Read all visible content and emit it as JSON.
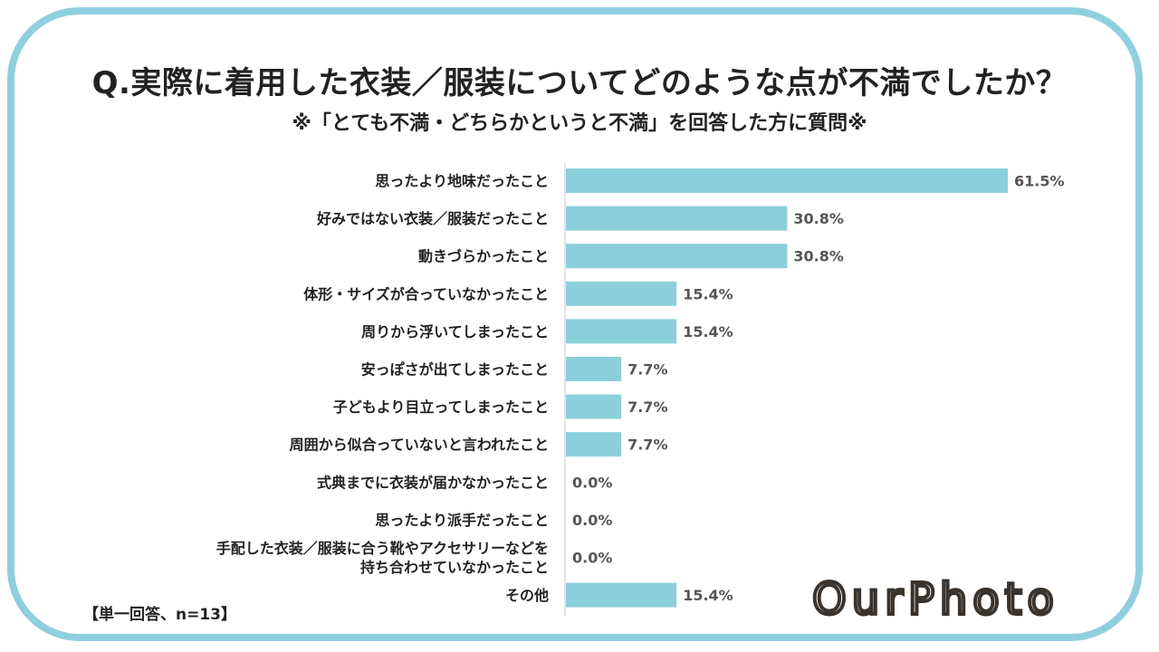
{
  "title": "Q.実際に着用した衣装／服装についてどのような点が不満でしたか？",
  "subtitle": "※「とても不満・どちらかというと不満」を回答した方に質問※",
  "note": "【単一回答、n=13】",
  "logo_text": "OurPhoto",
  "colors": {
    "bar": "#8ccfdc",
    "frame": "#8fcfdf",
    "axis": "#c8c8c8"
  },
  "chart_data": {
    "type": "bar",
    "orientation": "horizontal",
    "categories": [
      [
        "思ったより地味だったこと"
      ],
      [
        "好みではない衣装／服装だったこと"
      ],
      [
        "動きづらかったこと"
      ],
      [
        "体形・サイズが合っていなかったこと"
      ],
      [
        "周りから浮いてしまったこと"
      ],
      [
        "安っぽさが出てしまったこと"
      ],
      [
        "子どもより目立ってしまったこと"
      ],
      [
        "周囲から似合っていないと言われたこと"
      ],
      [
        "式典までに衣装が届かなかったこと"
      ],
      [
        "思ったより派手だったこと"
      ],
      [
        "手配した衣装／服装に合う靴やアクセサリーなどを",
        "持ち合わせていなかったこと"
      ],
      [
        "その他"
      ]
    ],
    "values": [
      61.5,
      30.8,
      30.8,
      15.4,
      15.4,
      7.7,
      7.7,
      7.7,
      0.0,
      0.0,
      0.0,
      15.4
    ],
    "value_labels": [
      "61.5%",
      "30.8%",
      "30.8%",
      "15.4%",
      "15.4%",
      "7.7%",
      "7.7%",
      "7.7%",
      "0.0%",
      "0.0%",
      "0.0%",
      "15.4%"
    ],
    "xlim": [
      0,
      61.5
    ],
    "grid": false,
    "legend": "none"
  }
}
